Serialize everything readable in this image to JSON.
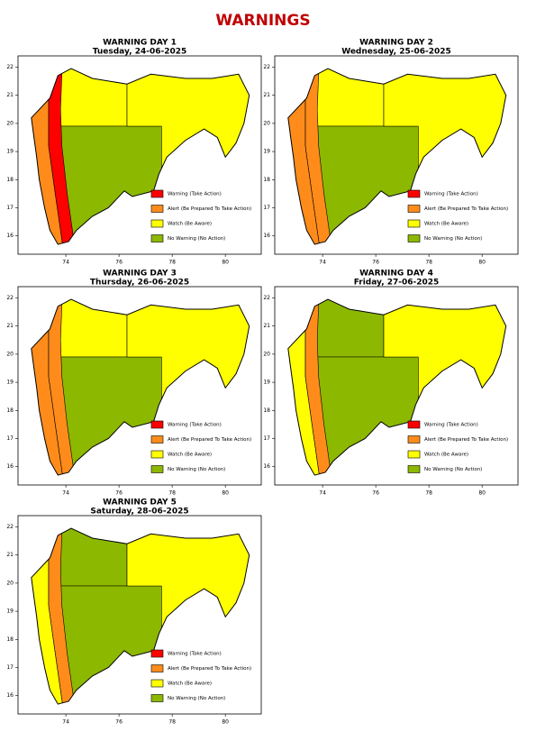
{
  "title": "WARNINGS",
  "legend": [
    {
      "label": "Warning (Take Action)",
      "color": "#ff0000"
    },
    {
      "label": "Alert (Be Prepared To Take Action)",
      "color": "#ff8c1a"
    },
    {
      "label": "Watch (Be Aware)",
      "color": "#ffff00"
    },
    {
      "label": "No Warning (No Action)",
      "color": "#8cb800"
    }
  ],
  "map": {
    "xlim": [
      72.2,
      81.35
    ],
    "ylim": [
      15.35,
      22.4
    ],
    "xticks": [
      74,
      76,
      78,
      80
    ],
    "yticks": [
      16,
      17,
      18,
      19,
      20,
      21,
      22
    ]
  },
  "panels": [
    {
      "title": "WARNING DAY 1",
      "date": "Tuesday, 24-06-2025",
      "zone_colors": [
        "#ff8c1a",
        "#ff0000",
        "#ffff00",
        "#8cb800",
        "#ffff00"
      ]
    },
    {
      "title": "WARNING DAY 2",
      "date": "Wednesday, 25-06-2025",
      "zone_colors": [
        "#ff8c1a",
        "#ff8c1a",
        "#ffff00",
        "#8cb800",
        "#ffff00"
      ]
    },
    {
      "title": "WARNING DAY 3",
      "date": "Thursday, 26-06-2025",
      "zone_colors": [
        "#ff8c1a",
        "#ff8c1a",
        "#ffff00",
        "#8cb800",
        "#ffff00"
      ]
    },
    {
      "title": "WARNING DAY 4",
      "date": "Friday, 27-06-2025",
      "zone_colors": [
        "#ffff00",
        "#ff8c1a",
        "#8cb800",
        "#8cb800",
        "#ffff00"
      ]
    },
    {
      "title": "WARNING DAY 5",
      "date": "Saturday, 28-06-2025",
      "zone_colors": [
        "#ffff00",
        "#ff8c1a",
        "#8cb800",
        "#8cb800",
        "#ffff00"
      ]
    }
  ]
}
